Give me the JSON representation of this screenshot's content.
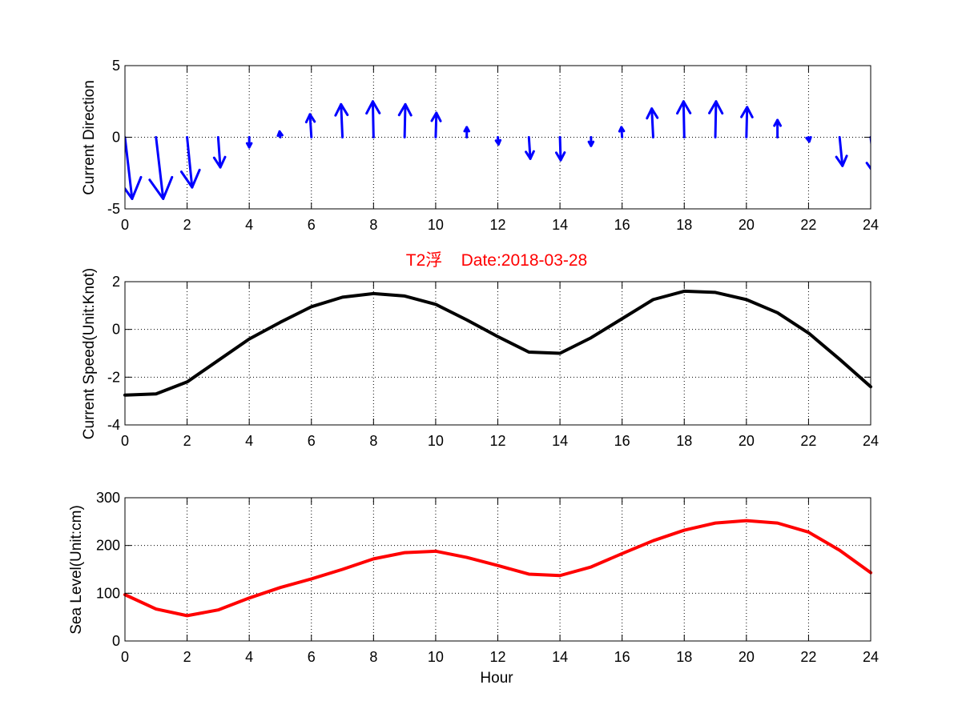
{
  "colors": {
    "direction": "#0000ff",
    "speed": "#000000",
    "sea_level": "#ff0000",
    "title": "#ff0000",
    "grid": "#000000",
    "background": "#ffffff"
  },
  "chart_data": [
    {
      "id": "direction",
      "type": "quiver",
      "title": "",
      "xlabel": "",
      "ylabel": "Current Direction",
      "xlim": [
        0,
        24
      ],
      "ylim": [
        -5,
        5
      ],
      "xticks": [
        0,
        2,
        4,
        6,
        8,
        10,
        12,
        14,
        16,
        18,
        20,
        22,
        24
      ],
      "yticks": [
        -5,
        0,
        5
      ],
      "grid": true,
      "x": [
        0,
        1,
        2,
        3,
        4,
        5,
        6,
        7,
        8,
        9,
        10,
        11,
        12,
        13,
        14,
        15,
        16,
        17,
        18,
        19,
        20,
        21,
        22,
        23,
        24
      ],
      "u": [
        0.5,
        0.5,
        0.35,
        0.15,
        0.0,
        -0.05,
        -0.1,
        -0.1,
        -0.05,
        0.05,
        0.05,
        0.0,
        0.05,
        0.1,
        0.05,
        0.0,
        -0.05,
        -0.1,
        -0.05,
        0.05,
        0.05,
        0.0,
        0.05,
        0.2,
        0.3
      ],
      "v": [
        -4.3,
        -4.3,
        -3.5,
        -2.1,
        -0.7,
        0.4,
        1.6,
        2.3,
        2.5,
        2.3,
        1.7,
        0.7,
        -0.5,
        -1.5,
        -1.6,
        -0.6,
        0.7,
        2.0,
        2.5,
        2.5,
        2.1,
        1.2,
        -0.3,
        -2.0,
        -2.6
      ]
    },
    {
      "id": "speed",
      "type": "line",
      "title": "T2浮    Date:2018-03-28",
      "xlabel": "",
      "ylabel": "Current Speed(Unit:Knot)",
      "xlim": [
        0,
        24
      ],
      "ylim": [
        -4,
        2
      ],
      "xticks": [
        0,
        2,
        4,
        6,
        8,
        10,
        12,
        14,
        16,
        18,
        20,
        22,
        24
      ],
      "yticks": [
        -4,
        -2,
        0,
        2
      ],
      "grid": true,
      "series": [
        {
          "x": [
            0,
            1,
            2,
            3,
            4,
            5,
            6,
            7,
            8,
            9,
            10,
            11,
            12,
            13,
            14,
            15,
            16,
            17,
            18,
            19,
            20,
            21,
            22,
            23,
            24
          ],
          "y": [
            -2.75,
            -2.7,
            -2.2,
            -1.3,
            -0.4,
            0.3,
            0.95,
            1.35,
            1.5,
            1.4,
            1.05,
            0.4,
            -0.3,
            -0.95,
            -1.0,
            -0.35,
            0.45,
            1.25,
            1.6,
            1.55,
            1.25,
            0.7,
            -0.15,
            -1.25,
            -2.4
          ]
        }
      ]
    },
    {
      "id": "sealevel",
      "type": "line",
      "title": "",
      "xlabel": "Hour",
      "ylabel": "Sea Level(Unit:cm)",
      "xlim": [
        0,
        24
      ],
      "ylim": [
        0,
        300
      ],
      "xticks": [
        0,
        2,
        4,
        6,
        8,
        10,
        12,
        14,
        16,
        18,
        20,
        22,
        24
      ],
      "yticks": [
        0,
        100,
        200,
        300
      ],
      "grid": true,
      "series": [
        {
          "x": [
            0,
            1,
            2,
            3,
            4,
            5,
            6,
            7,
            8,
            9,
            10,
            11,
            12,
            13,
            14,
            15,
            16,
            17,
            18,
            19,
            20,
            21,
            22,
            23,
            24
          ],
          "y": [
            97,
            67,
            53,
            65,
            90,
            112,
            130,
            150,
            172,
            185,
            188,
            175,
            158,
            140,
            137,
            155,
            183,
            210,
            232,
            247,
            252,
            247,
            228,
            190,
            143
          ]
        }
      ]
    }
  ]
}
